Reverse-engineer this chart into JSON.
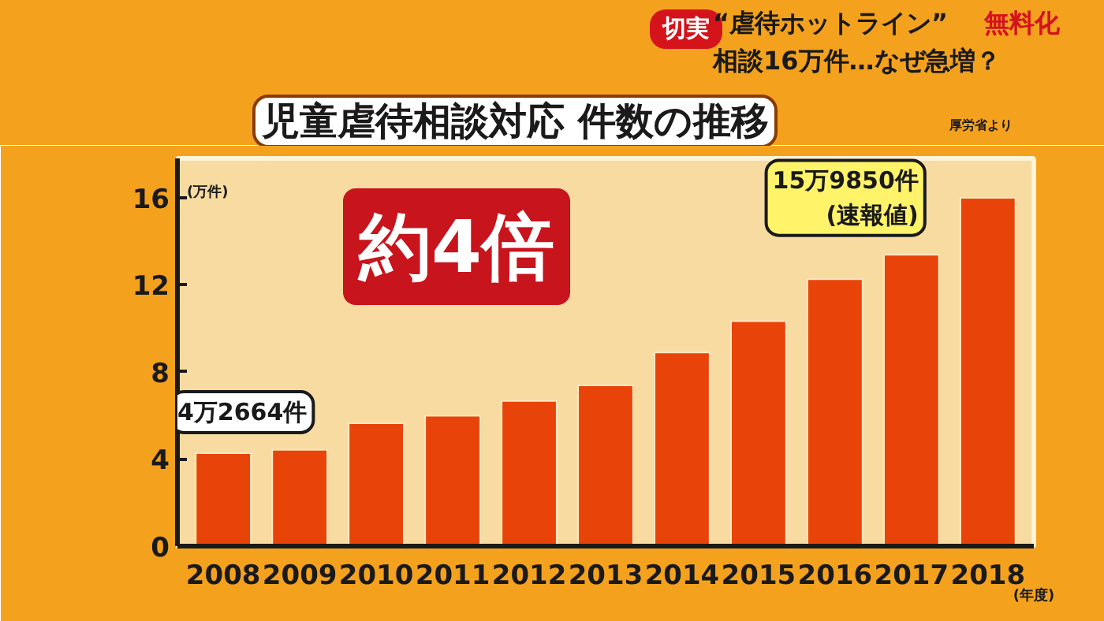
{
  "chart_data": {
    "type": "bar",
    "title": "児童虐待相談対応 件数の推移",
    "categories": [
      "2008",
      "2009",
      "2010",
      "2011",
      "2012",
      "2013",
      "2014",
      "2015",
      "2016",
      "2017",
      "2018"
    ],
    "values": [
      4.27,
      4.42,
      5.64,
      5.99,
      6.67,
      7.38,
      8.89,
      10.33,
      12.26,
      13.38,
      15.99
    ],
    "color": "#e8440a",
    "ylim": [
      0,
      17.8
    ],
    "yticks": [
      0,
      4,
      8,
      12,
      16
    ],
    "ylabel": "(万件)",
    "xlabel": "(年度)",
    "annotations": [
      "切実",
      "“虐待ホットライン”",
      "無料化",
      "相談16万件…なぜ急増？",
      "厚労省より",
      "約4倍",
      {
        "text": "4万2664件",
        "x": "2008",
        "y": 4.27
      },
      {
        "text": "15万9850件\n(速報値)",
        "x": "2018",
        "y": 15.99
      }
    ]
  }
}
